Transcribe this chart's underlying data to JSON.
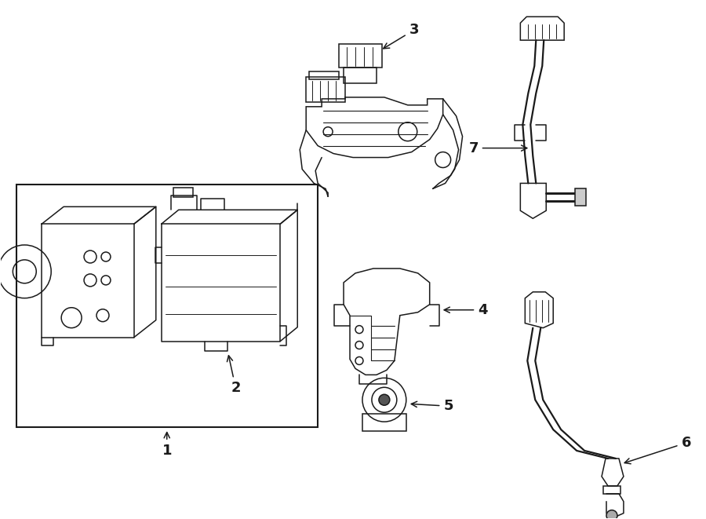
{
  "bg_color": "#ffffff",
  "line_color": "#1a1a1a",
  "lw": 1.1,
  "fig_width": 9.0,
  "fig_height": 6.61
}
